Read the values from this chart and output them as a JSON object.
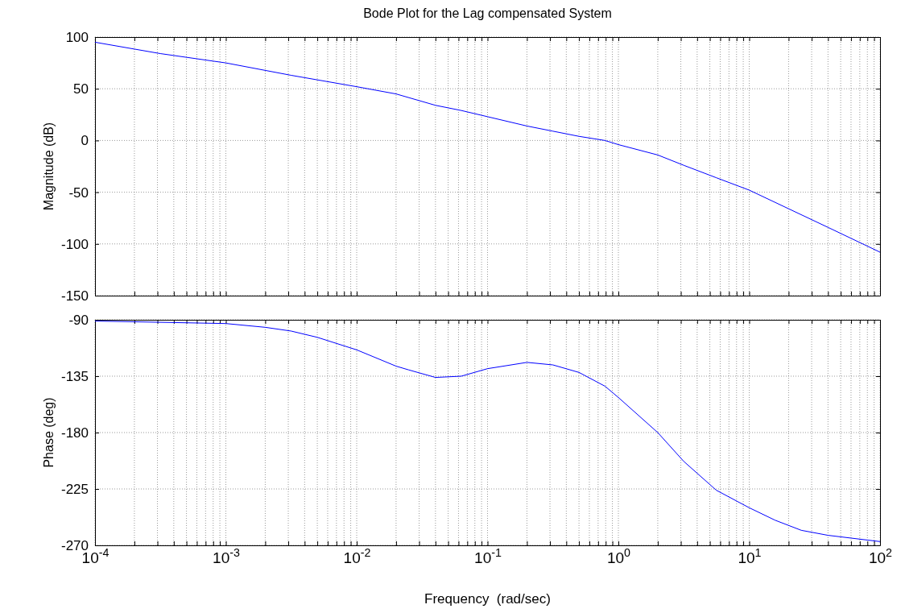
{
  "chart_data": [
    {
      "type": "line",
      "title": "Bode Plot for the Lag compensated System",
      "ylabel": "Magnitude (dB)",
      "log": "x",
      "grid": true,
      "tick_labels": "y",
      "line_style": "solid",
      "marker": "none",
      "xlim": [
        0.0001,
        100
      ],
      "xticks": [
        {
          "value": 0.0001,
          "label": null
        },
        {
          "value": 0.0002,
          "label": null
        },
        {
          "value": 0.0003,
          "label": null
        },
        {
          "value": 0.0004,
          "label": null
        },
        {
          "value": 0.0005,
          "label": null
        },
        {
          "value": 0.0006,
          "label": null
        },
        {
          "value": 0.0007,
          "label": null
        },
        {
          "value": 0.0008,
          "label": null
        },
        {
          "value": 0.0009,
          "label": null
        },
        {
          "value": 0.001,
          "label": null
        },
        {
          "value": 0.002,
          "label": null
        },
        {
          "value": 0.003,
          "label": null
        },
        {
          "value": 0.004,
          "label": null
        },
        {
          "value": 0.005,
          "label": null
        },
        {
          "value": 0.006,
          "label": null
        },
        {
          "value": 0.007,
          "label": null
        },
        {
          "value": 0.008,
          "label": null
        },
        {
          "value": 0.009,
          "label": null
        },
        {
          "value": 0.01,
          "label": null
        },
        {
          "value": 0.02,
          "label": null
        },
        {
          "value": 0.03,
          "label": null
        },
        {
          "value": 0.04,
          "label": null
        },
        {
          "value": 0.05,
          "label": null
        },
        {
          "value": 0.06,
          "label": null
        },
        {
          "value": 0.07,
          "label": null
        },
        {
          "value": 0.08,
          "label": null
        },
        {
          "value": 0.09,
          "label": null
        },
        {
          "value": 0.1,
          "label": null
        },
        {
          "value": 0.2,
          "label": null
        },
        {
          "value": 0.3,
          "label": null
        },
        {
          "value": 0.4,
          "label": null
        },
        {
          "value": 0.5,
          "label": null
        },
        {
          "value": 0.6,
          "label": null
        },
        {
          "value": 0.7,
          "label": null
        },
        {
          "value": 0.8,
          "label": null
        },
        {
          "value": 0.9,
          "label": null
        },
        {
          "value": 1,
          "label": null
        },
        {
          "value": 2,
          "label": null
        },
        {
          "value": 3,
          "label": null
        },
        {
          "value": 4,
          "label": null
        },
        {
          "value": 5,
          "label": null
        },
        {
          "value": 6,
          "label": null
        },
        {
          "value": 7,
          "label": null
        },
        {
          "value": 8,
          "label": null
        },
        {
          "value": 9,
          "label": null
        },
        {
          "value": 10,
          "label": null
        },
        {
          "value": 20,
          "label": null
        },
        {
          "value": 30,
          "label": null
        },
        {
          "value": 40,
          "label": null
        },
        {
          "value": 50,
          "label": null
        },
        {
          "value": 60,
          "label": null
        },
        {
          "value": 70,
          "label": null
        },
        {
          "value": 80,
          "label": null
        },
        {
          "value": 90,
          "label": null
        },
        {
          "value": 100,
          "label": null
        }
      ],
      "ylim": [
        -150,
        100
      ],
      "yticks": [
        -150,
        -100,
        -50,
        0,
        50,
        100
      ],
      "series": [
        {
          "color": "#0000ff",
          "x": [
            0.0001,
            0.000316,
            0.001,
            0.00316,
            0.01,
            0.02,
            0.04,
            0.063,
            0.1,
            0.2,
            0.316,
            0.5,
            0.79,
            1,
            2,
            3.16,
            5.6,
            10,
            20,
            40,
            100
          ],
          "values": [
            95,
            84,
            75,
            63,
            52,
            45,
            34,
            29,
            23,
            14,
            9,
            4,
            0,
            -4,
            -14,
            -24,
            -36,
            -48,
            -66,
            -84,
            -108
          ]
        }
      ]
    },
    {
      "type": "line",
      "ylabel": "Phase (deg)",
      "xlabel": "Frequency  (rad/sec)",
      "log": "x",
      "grid": true,
      "line_style": "solid",
      "marker": "none",
      "xlim": [
        0.0001,
        100
      ],
      "xticks": [
        {
          "value": 0.0001,
          "label": "10$^{-4}$"
        },
        {
          "value": 0.0002,
          "label": null
        },
        {
          "value": 0.0003,
          "label": null
        },
        {
          "value": 0.0004,
          "label": null
        },
        {
          "value": 0.0005,
          "label": null
        },
        {
          "value": 0.0006,
          "label": null
        },
        {
          "value": 0.0007,
          "label": null
        },
        {
          "value": 0.0008,
          "label": null
        },
        {
          "value": 0.0009,
          "label": null
        },
        {
          "value": 0.001,
          "label": "10$^{-3}$"
        },
        {
          "value": 0.002,
          "label": null
        },
        {
          "value": 0.003,
          "label": null
        },
        {
          "value": 0.004,
          "label": null
        },
        {
          "value": 0.005,
          "label": null
        },
        {
          "value": 0.006,
          "label": null
        },
        {
          "value": 0.007,
          "label": null
        },
        {
          "value": 0.008,
          "label": null
        },
        {
          "value": 0.009,
          "label": null
        },
        {
          "value": 0.01,
          "label": "10$^{-2}$"
        },
        {
          "value": 0.02,
          "label": null
        },
        {
          "value": 0.03,
          "label": null
        },
        {
          "value": 0.04,
          "label": null
        },
        {
          "value": 0.05,
          "label": null
        },
        {
          "value": 0.06,
          "label": null
        },
        {
          "value": 0.07,
          "label": null
        },
        {
          "value": 0.08,
          "label": null
        },
        {
          "value": 0.09,
          "label": null
        },
        {
          "value": 0.1,
          "label": "10$^{-1}$"
        },
        {
          "value": 0.2,
          "label": null
        },
        {
          "value": 0.3,
          "label": null
        },
        {
          "value": 0.4,
          "label": null
        },
        {
          "value": 0.5,
          "label": null
        },
        {
          "value": 0.6,
          "label": null
        },
        {
          "value": 0.7,
          "label": null
        },
        {
          "value": 0.8,
          "label": null
        },
        {
          "value": 0.9,
          "label": null
        },
        {
          "value": 1,
          "label": "10$^{0}$"
        },
        {
          "value": 2,
          "label": null
        },
        {
          "value": 3,
          "label": null
        },
        {
          "value": 4,
          "label": null
        },
        {
          "value": 5,
          "label": null
        },
        {
          "value": 6,
          "label": null
        },
        {
          "value": 7,
          "label": null
        },
        {
          "value": 8,
          "label": null
        },
        {
          "value": 9,
          "label": null
        },
        {
          "value": 10,
          "label": "10$^{1}$"
        },
        {
          "value": 20,
          "label": null
        },
        {
          "value": 30,
          "label": null
        },
        {
          "value": 40,
          "label": null
        },
        {
          "value": 50,
          "label": null
        },
        {
          "value": 60,
          "label": null
        },
        {
          "value": 70,
          "label": null
        },
        {
          "value": 80,
          "label": null
        },
        {
          "value": 90,
          "label": null
        },
        {
          "value": 100,
          "label": "10$^{2}$"
        }
      ],
      "ylim": [
        -270,
        -90
      ],
      "yticks": [
        -270,
        -225,
        -180,
        -135,
        -90
      ],
      "series": [
        {
          "color": "#0000ff",
          "x": [
            0.0001,
            0.001,
            0.002,
            0.00316,
            0.005,
            0.01,
            0.02,
            0.025,
            0.04,
            0.063,
            0.1,
            0.2,
            0.316,
            0.5,
            0.79,
            1,
            2,
            3.16,
            5.6,
            10,
            15.8,
            25,
            40,
            100
          ],
          "values": [
            -91,
            -93,
            -96,
            -99,
            -104,
            -114,
            -127,
            -130,
            -136,
            -135,
            -129,
            -124,
            -126,
            -132,
            -143,
            -152,
            -180,
            -203,
            -226,
            -240,
            -250,
            -258,
            -262,
            -267
          ]
        }
      ]
    }
  ]
}
